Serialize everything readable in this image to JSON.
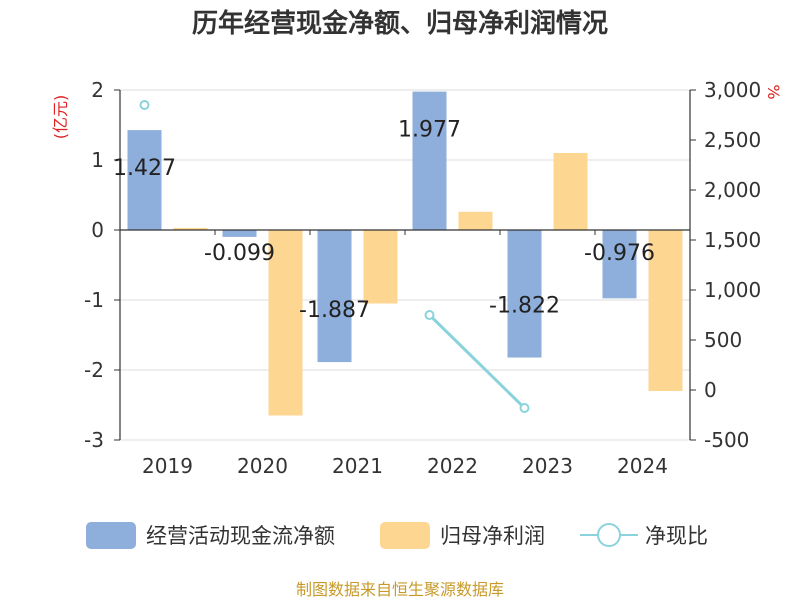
{
  "chart_data": {
    "type": "bar",
    "title": "历年经营现金净额、归母净利润情况",
    "categories": [
      "2019",
      "2020",
      "2021",
      "2022",
      "2023",
      "2024"
    ],
    "y_left": {
      "unit": "(亿元)",
      "range": [
        -3,
        2
      ],
      "ticks": [
        "2",
        "1",
        "0",
        "-1",
        "-2",
        "-3"
      ]
    },
    "y_right": {
      "unit": "%",
      "range": [
        -500,
        3000
      ],
      "ticks": [
        "3,000",
        "2,500",
        "2,000",
        "1,500",
        "1,000",
        "500",
        "0",
        "-500"
      ]
    },
    "series": [
      {
        "name": "经营活动现金流净额",
        "type": "bar",
        "axis": "left",
        "color": "#8eaedb",
        "values": [
          1.427,
          -0.099,
          -1.887,
          1.977,
          -1.822,
          -0.976
        ],
        "labels": [
          "1.427",
          "-0.099",
          "-1.887",
          "1.977",
          "-1.822",
          "-0.976"
        ]
      },
      {
        "name": "归母净利润",
        "type": "bar",
        "axis": "left",
        "color": "#fdd692",
        "values": [
          0.03,
          -2.65,
          -1.05,
          0.26,
          1.1,
          -2.3
        ]
      },
      {
        "name": "净现比",
        "type": "line",
        "axis": "right",
        "color": "#8ad3dc",
        "values": [
          2850,
          null,
          null,
          750,
          -180,
          null
        ]
      }
    ],
    "grid": true,
    "legend_position": "bottom"
  },
  "source": {
    "text": "制图数据来自恒生聚源数据库",
    "color": "#c79a2a"
  },
  "colors": {
    "unit_label": "#e02020"
  }
}
